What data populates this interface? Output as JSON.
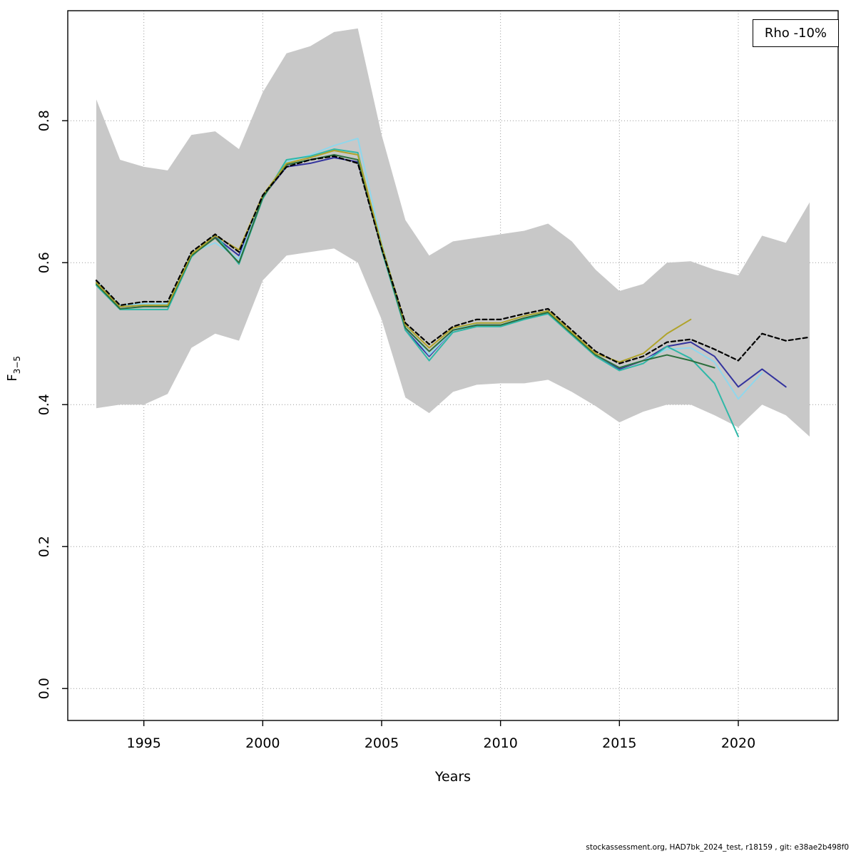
{
  "legend": {
    "label": "Rho -10%"
  },
  "footer": {
    "text": "stockassessment.org, HAD7bk_2024_test, r18159 , git: e38ae2b498f0"
  },
  "ylabel_parts": {
    "base": "F",
    "sub": "3−5"
  },
  "chart_data": {
    "type": "line",
    "title": "",
    "xlabel": "Years",
    "ylabel": "F_{3-5}",
    "xlim": [
      1991.8,
      2024.2
    ],
    "ylim": [
      -0.045,
      0.955
    ],
    "x_ticks": [
      1995,
      2000,
      2005,
      2010,
      2015,
      2020
    ],
    "x_tick_labels": [
      "1995",
      "2000",
      "2005",
      "2010",
      "2015",
      "2020"
    ],
    "y_ticks": [
      0.0,
      0.2,
      0.4,
      0.6,
      0.8
    ],
    "y_tick_labels": [
      "0.0",
      "0.2",
      "0.4",
      "0.6",
      "0.8"
    ],
    "grid": true,
    "grid_color": "#9a9a9a",
    "legend_position": "top-right",
    "band": {
      "name": "confidence-band",
      "color": "#c8c8c8",
      "start_year": 1993,
      "upper": [
        0.83,
        0.745,
        0.735,
        0.73,
        0.78,
        0.785,
        0.76,
        0.84,
        0.895,
        0.905,
        0.925,
        0.93,
        0.78,
        0.66,
        0.61,
        0.63,
        0.635,
        0.64,
        0.645,
        0.655,
        0.63,
        0.59,
        0.56,
        0.57,
        0.6,
        0.602,
        0.59,
        0.582,
        0.638,
        0.628,
        0.685
      ],
      "lower": [
        0.395,
        0.4,
        0.4,
        0.415,
        0.48,
        0.5,
        0.49,
        0.575,
        0.61,
        0.615,
        0.62,
        0.6,
        0.52,
        0.41,
        0.388,
        0.418,
        0.428,
        0.43,
        0.43,
        0.435,
        0.418,
        0.398,
        0.375,
        0.39,
        0.4,
        0.4,
        0.385,
        0.368,
        0.4,
        0.385,
        0.355
      ]
    },
    "series": [
      {
        "name": "base-run",
        "color": "#000000",
        "dash": "6 4",
        "width": 2.2,
        "start_year": 1993,
        "values": [
          0.575,
          0.54,
          0.545,
          0.545,
          0.615,
          0.64,
          0.615,
          0.695,
          0.735,
          0.745,
          0.75,
          0.74,
          0.62,
          0.515,
          0.485,
          0.51,
          0.52,
          0.52,
          0.528,
          0.535,
          0.505,
          0.475,
          0.458,
          0.468,
          0.488,
          0.492,
          0.478,
          0.462,
          0.5,
          0.49,
          0.495
        ]
      },
      {
        "name": "retro-peel-2022",
        "color": "#33339e",
        "dash": "",
        "width": 2,
        "start_year": 1993,
        "values": [
          0.573,
          0.538,
          0.54,
          0.54,
          0.612,
          0.636,
          0.61,
          0.693,
          0.735,
          0.74,
          0.748,
          0.742,
          0.622,
          0.505,
          0.468,
          0.505,
          0.512,
          0.512,
          0.522,
          0.528,
          0.5,
          0.47,
          0.45,
          0.462,
          0.482,
          0.488,
          0.468,
          0.425,
          0.45,
          0.425
        ]
      },
      {
        "name": "retro-peel-2021",
        "color": "#8fd7ec",
        "dash": "",
        "width": 2,
        "start_year": 1993,
        "values": [
          0.574,
          0.54,
          0.542,
          0.542,
          0.614,
          0.628,
          0.605,
          0.694,
          0.742,
          0.752,
          0.765,
          0.775,
          0.628,
          0.51,
          0.47,
          0.505,
          0.515,
          0.515,
          0.525,
          0.53,
          0.5,
          0.47,
          0.452,
          0.462,
          0.478,
          0.48,
          0.46,
          0.408,
          0.445
        ]
      },
      {
        "name": "retro-peel-2020",
        "color": "#2fb8a8",
        "dash": "",
        "width": 2,
        "start_year": 1993,
        "values": [
          0.568,
          0.534,
          0.534,
          0.534,
          0.608,
          0.64,
          0.598,
          0.69,
          0.745,
          0.75,
          0.76,
          0.755,
          0.618,
          0.505,
          0.462,
          0.502,
          0.51,
          0.51,
          0.52,
          0.528,
          0.498,
          0.468,
          0.448,
          0.458,
          0.482,
          0.465,
          0.43,
          0.355
        ]
      },
      {
        "name": "retro-peel-2019",
        "color": "#2c6e3c",
        "dash": "",
        "width": 2,
        "start_year": 1993,
        "values": [
          0.57,
          0.535,
          0.538,
          0.538,
          0.61,
          0.635,
          0.6,
          0.692,
          0.738,
          0.745,
          0.752,
          0.745,
          0.62,
          0.508,
          0.475,
          0.505,
          0.512,
          0.512,
          0.522,
          0.53,
          0.5,
          0.47,
          0.452,
          0.462,
          0.47,
          0.462,
          0.452
        ]
      },
      {
        "name": "retro-peel-2018",
        "color": "#b0a32a",
        "dash": "",
        "width": 2,
        "start_year": 1993,
        "values": [
          0.572,
          0.538,
          0.54,
          0.54,
          0.612,
          0.638,
          0.618,
          0.695,
          0.74,
          0.748,
          0.758,
          0.752,
          0.625,
          0.512,
          0.48,
          0.508,
          0.515,
          0.515,
          0.525,
          0.532,
          0.502,
          0.472,
          0.46,
          0.472,
          0.5,
          0.52
        ]
      }
    ]
  }
}
